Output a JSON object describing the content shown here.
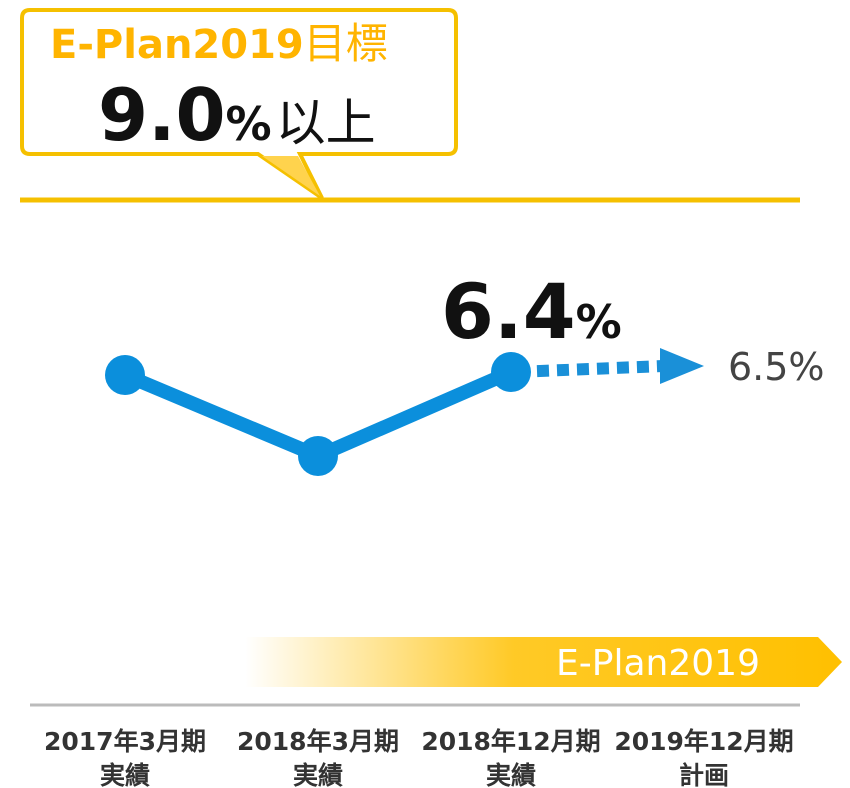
{
  "chart_data": {
    "type": "line",
    "callout": {
      "title": "E-Plan2019",
      "title_suffix": "目標",
      "value": "9.0",
      "unit": "%",
      "suffix": "以上"
    },
    "categories": [
      [
        "2017年3月期",
        "実績"
      ],
      [
        "2018年3月期",
        "実績"
      ],
      [
        "2018年12月期",
        "実績"
      ],
      [
        "2019年12月期",
        "計画"
      ]
    ],
    "values": [
      6.35,
      5.0,
      6.4,
      6.5
    ],
    "value_labels": [
      null,
      null,
      "6.4",
      "6.5%"
    ],
    "value_unit": "%",
    "ylim": [
      4,
      7
    ],
    "color": "#0b8fdc",
    "banner": "E-Plan2019"
  }
}
